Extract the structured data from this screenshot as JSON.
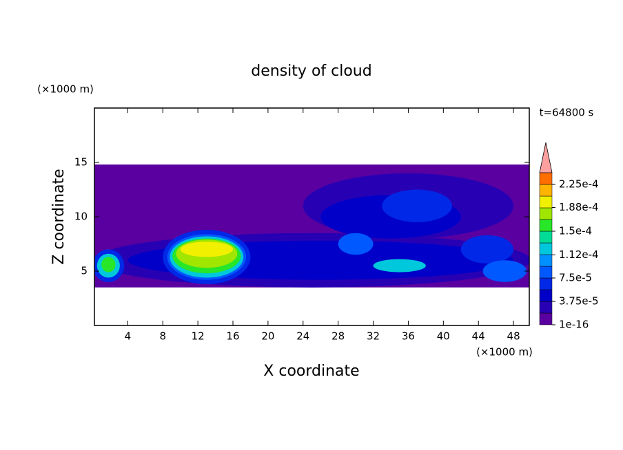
{
  "chart_data": {
    "type": "contour",
    "title": "density of cloud",
    "time_label": "t=64800 s",
    "y_unit": "(×1000 m)",
    "x_unit": "(×1000 m)",
    "xlabel": "X coordinate",
    "ylabel": "Z coordinate",
    "xlim": [
      0.2,
      49.8
    ],
    "ylim": [
      0,
      20
    ],
    "xticks": [
      4,
      8,
      12,
      16,
      20,
      24,
      28,
      32,
      36,
      40,
      44,
      48
    ],
    "yticks": [
      5,
      10,
      15
    ],
    "levels": [
      1e-16,
      1.875e-05,
      3.75e-05,
      5.625e-05,
      7.5e-05,
      9.375e-05,
      0.0001125,
      0.00013125,
      0.00015,
      0.00016875,
      0.0001875,
      0.00020625,
      0.000225,
      0.00024375
    ],
    "colors": [
      "#5a00a0",
      "#2800b4",
      "#0000c8",
      "#0028e6",
      "#0058ff",
      "#0090ff",
      "#00c8dc",
      "#00dc96",
      "#28e628",
      "#a0e600",
      "#f0f000",
      "#ffb400",
      "#ff6e00",
      "#ff1e00",
      "#ffa0a0"
    ],
    "colorbar_ticks": [
      1e-16,
      {
        "value": 3.75e-05,
        "label": "3.75e-5"
      },
      {
        "value": 7.5e-05,
        "label": "7.5e-5"
      },
      {
        "value": 0.000112,
        "label": "1.12e-4"
      },
      {
        "value": 0.00015,
        "label": "1.5e-4"
      },
      {
        "value": 0.000188,
        "label": "1.88e-4"
      },
      {
        "value": 0.000225,
        "label": "2.25e-4"
      }
    ],
    "regions": [
      {
        "x": 25,
        "z": 9.15,
        "rx": 24.8,
        "rz": 5.65,
        "level": 1e-16,
        "shape": "rect"
      },
      {
        "x": 25,
        "z": 6,
        "rx": 25,
        "rz": 2.5,
        "level": 2e-05
      },
      {
        "x": 36,
        "z": 11,
        "rx": 12,
        "rz": 3,
        "level": 2e-05
      },
      {
        "x": 34,
        "z": 10,
        "rx": 8,
        "rz": 2,
        "level": 4e-05
      },
      {
        "x": 26,
        "z": 6,
        "rx": 22,
        "rz": 1.8,
        "level": 4e-05
      },
      {
        "x": 37,
        "z": 11,
        "rx": 4,
        "rz": 1.5,
        "level": 6e-05
      },
      {
        "x": 45,
        "z": 7,
        "rx": 3,
        "rz": 1.3,
        "level": 6e-05
      },
      {
        "x": 47,
        "z": 5,
        "rx": 2.5,
        "rz": 1,
        "level": 9e-05
      },
      {
        "x": 30,
        "z": 7.5,
        "rx": 2,
        "rz": 1,
        "level": 9e-05
      },
      {
        "x": 35,
        "z": 5.5,
        "rx": 3,
        "rz": 0.6,
        "level": 0.00012
      },
      {
        "x": 13,
        "z": 6.3,
        "rx": 5,
        "rz": 2.5,
        "level": 6e-05
      },
      {
        "x": 13,
        "z": 6.3,
        "rx": 4.5,
        "rz": 2.1,
        "level": 9e-05
      },
      {
        "x": 13,
        "z": 6.3,
        "rx": 4.2,
        "rz": 1.9,
        "level": 0.00012
      },
      {
        "x": 13,
        "z": 6.4,
        "rx": 3.9,
        "rz": 1.6,
        "level": 0.00015
      },
      {
        "x": 13,
        "z": 6.6,
        "rx": 3.5,
        "rz": 1.3,
        "level": 0.00017
      },
      {
        "x": 13,
        "z": 7,
        "rx": 3,
        "rz": 0.7,
        "level": 0.00019
      },
      {
        "x": 1.8,
        "z": 5.5,
        "rx": 1.8,
        "rz": 1.5,
        "level": 6e-05
      },
      {
        "x": 1.8,
        "z": 5.5,
        "rx": 1.3,
        "rz": 1.1,
        "level": 0.00012
      },
      {
        "x": 1.8,
        "z": 5.6,
        "rx": 0.8,
        "rz": 0.7,
        "level": 0.00016
      }
    ]
  }
}
